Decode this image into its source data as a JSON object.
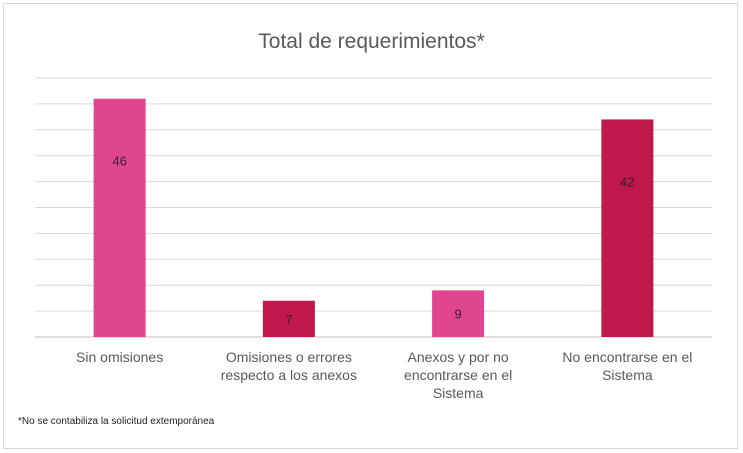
{
  "chart_data": {
    "type": "bar",
    "title": "Total de requerimientos*",
    "categories": [
      [
        "Sin omisiones"
      ],
      [
        "Omisiones o errores",
        "respecto a los anexos"
      ],
      [
        "Anexos y por no",
        "encontrarse en el",
        "Sistema"
      ],
      [
        "No encontrarse en el",
        "Sistema"
      ]
    ],
    "values": [
      46,
      7,
      9,
      42
    ],
    "data_labels": [
      "46",
      "7",
      "9",
      "42"
    ],
    "colors": [
      "#e0468f",
      "#c0184a",
      "#e0468f",
      "#c0184a"
    ],
    "ylim": [
      0,
      50
    ],
    "grid": true,
    "legend": false
  },
  "footnote": "*No se contabiliza la solicitud extemporánea"
}
